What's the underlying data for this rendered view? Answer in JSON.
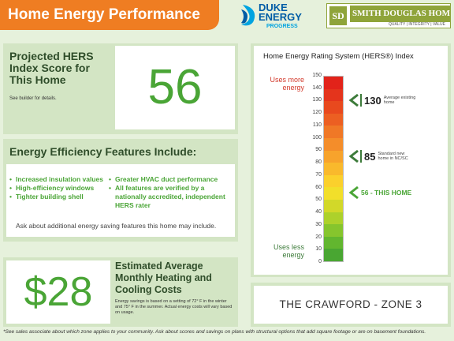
{
  "header": {
    "title": "Home Energy Performance",
    "duke_logo": {
      "line1": "DUKE",
      "line2": "ENERGY",
      "line3": "PROGRESS"
    },
    "builder_logo": {
      "mark": "SD",
      "name": "SMITH DOUGLAS HOMES",
      "tagline": "QUALITY | INTEGRITY | VALUE"
    }
  },
  "score_panel": {
    "heading": "Projected HERS Index Score for This Home",
    "note": "See builder for details.",
    "score": "56"
  },
  "features": {
    "heading": "Energy Efficiency Features Include:",
    "left_items": [
      "Increased insulation values",
      "High-efficiency windows",
      "Tighter building shell"
    ],
    "right_items": [
      "Greater HVAC duct performance",
      "All features are verified by a nationally accredited, independent HERS rater"
    ],
    "footer": "Ask about additional energy saving features this home may include."
  },
  "savings": {
    "amount": "$28",
    "heading": "Estimated Average Monthly Heating and Cooling Costs",
    "note": "Energy savings is based on a setting of 72° F in the winter and 75° F in the summer. Actual energy costs will vary based on usage."
  },
  "hers_index": {
    "title": "Home Energy Rating System (HERS®) Index",
    "top_label": "Uses more energy",
    "bottom_label": "Uses less energy",
    "ticks": [
      "150",
      "140",
      "130",
      "120",
      "110",
      "100",
      "90",
      "80",
      "70",
      "60",
      "50",
      "40",
      "30",
      "20",
      "10",
      "0"
    ],
    "callouts": [
      {
        "value": 130,
        "number": "130",
        "text": "Average existing home",
        "color": "#3d7b3a"
      },
      {
        "value": 85,
        "number": "85",
        "text": "Standard new home in NC/SC",
        "color": "#3d7b3a"
      },
      {
        "value": 56,
        "number": "56 - THIS HOME",
        "text": "",
        "color": "#4aa536"
      }
    ],
    "scale_max": 150
  },
  "model": {
    "name": "THE CRAWFORD - ZONE 3"
  },
  "footnote": "*See sales associate about which zone applies to your community.  Ask about scores and savings on plans with structural options that add square footage or are on basement foundations."
}
